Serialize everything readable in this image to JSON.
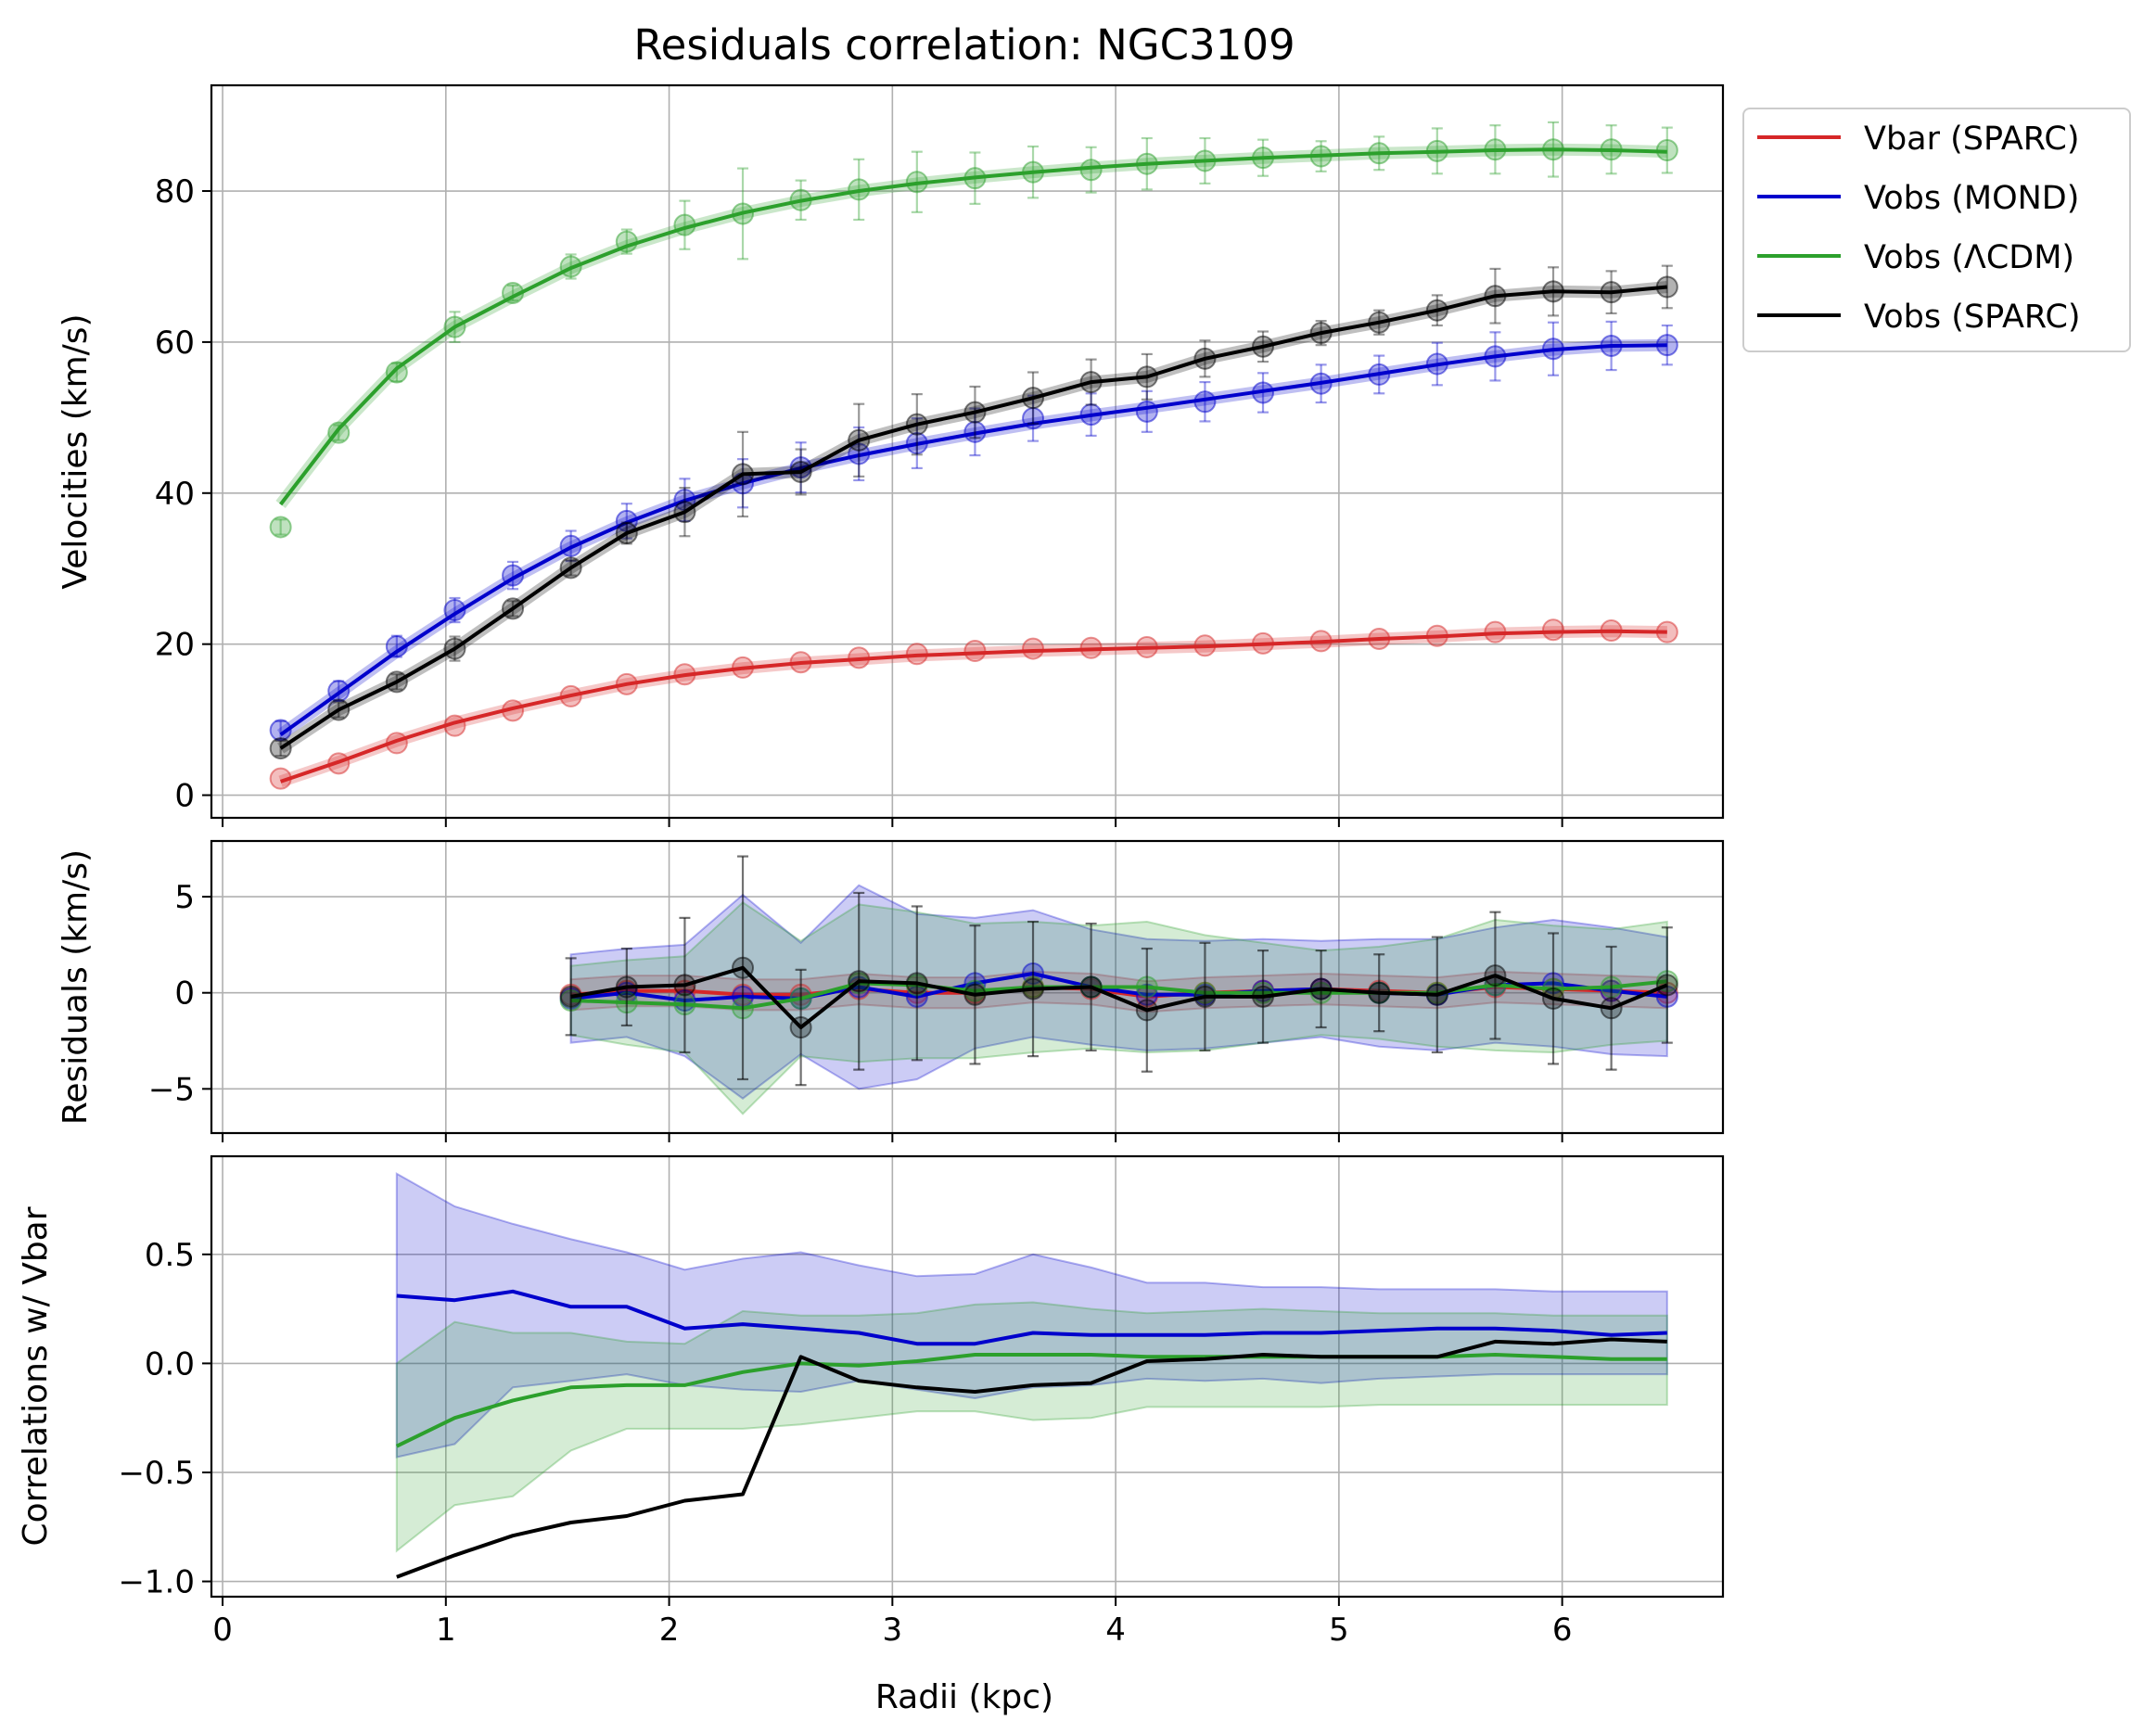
{
  "title": "Residuals correlation: NGC3109",
  "xlabel": "Radii (kpc)",
  "colors": {
    "vbar": "#d62728",
    "mond": "#0000cc",
    "lcdm": "#2ca02c",
    "sparc": "#000000",
    "grid": "#b0b0b0"
  },
  "legend": {
    "placement": "outside-upper-right",
    "entries": [
      "Vbar (SPARC)",
      "Vobs (MOND)",
      "Vobs (ΛCDM)",
      "Vobs (SPARC)"
    ]
  },
  "chart_data": [
    {
      "type": "line",
      "panel": "velocities",
      "ylabel": "Velocities (km/s)",
      "xlim": [
        -0.05,
        6.72
      ],
      "ylim": [
        -3,
        94
      ],
      "xticks": [
        0,
        1,
        2,
        3,
        4,
        5,
        6
      ],
      "yticks": [
        0,
        20,
        40,
        60,
        80
      ],
      "grid": true,
      "x": [
        0.26,
        0.52,
        0.78,
        1.04,
        1.3,
        1.56,
        1.81,
        2.07,
        2.33,
        2.59,
        2.85,
        3.11,
        3.37,
        3.63,
        3.89,
        4.14,
        4.4,
        4.66,
        4.92,
        5.18,
        5.44,
        5.7,
        5.96,
        6.22,
        6.47
      ],
      "series": [
        {
          "name": "Vbar (SPARC)",
          "color_key": "vbar",
          "values": [
            2.2,
            4.2,
            6.9,
            9.2,
            11.2,
            13.1,
            14.7,
            16.0,
            16.9,
            17.6,
            18.2,
            18.7,
            19.1,
            19.4,
            19.5,
            19.6,
            19.8,
            20.1,
            20.4,
            20.7,
            21.1,
            21.6,
            21.9,
            21.8,
            21.6
          ],
          "errors": [
            0,
            0,
            0,
            0,
            0,
            0,
            0,
            0,
            0,
            0,
            0,
            0,
            0,
            0,
            0,
            0,
            0,
            0,
            0,
            0,
            0,
            0,
            0,
            0,
            0
          ],
          "fit": [
            1.8,
            4.4,
            7.2,
            9.6,
            11.5,
            13.2,
            14.7,
            15.9,
            16.8,
            17.5,
            18.0,
            18.5,
            18.8,
            19.1,
            19.3,
            19.5,
            19.7,
            20.0,
            20.3,
            20.7,
            21.0,
            21.4,
            21.6,
            21.7,
            21.6
          ]
        },
        {
          "name": "Vobs (MOND)",
          "color_key": "mond",
          "values": [
            8.6,
            13.8,
            19.7,
            24.5,
            29.1,
            33.0,
            36.3,
            39.1,
            41.3,
            43.4,
            45.2,
            46.6,
            48.1,
            49.9,
            50.4,
            50.8,
            52.1,
            53.3,
            54.5,
            55.7,
            57.1,
            58.1,
            59.1,
            59.5,
            59.6
          ],
          "errors": [
            1.2,
            1.3,
            1.4,
            1.6,
            1.8,
            2.0,
            2.3,
            2.8,
            3.2,
            3.3,
            3.5,
            3.3,
            3.1,
            3.0,
            2.8,
            2.7,
            2.6,
            2.6,
            2.5,
            2.5,
            2.8,
            3.2,
            3.5,
            3.2,
            2.6
          ],
          "fit": [
            8.0,
            13.5,
            19.0,
            24.0,
            28.7,
            32.8,
            36.1,
            39.0,
            41.3,
            43.3,
            45.0,
            46.5,
            47.9,
            49.2,
            50.3,
            51.3,
            52.4,
            53.5,
            54.6,
            55.8,
            57.0,
            58.1,
            59.0,
            59.5,
            59.6
          ]
        },
        {
          "name": "Vobs (ΛCDM)",
          "color_key": "lcdm",
          "values": [
            35.5,
            48.0,
            56.0,
            62.0,
            66.5,
            70.0,
            73.3,
            75.5,
            77.0,
            78.8,
            80.2,
            81.2,
            81.7,
            82.5,
            82.8,
            83.6,
            84.0,
            84.4,
            84.6,
            85.0,
            85.3,
            85.5,
            85.5,
            85.5,
            85.4
          ],
          "errors": [
            1.0,
            1.0,
            1.2,
            2.0,
            1.0,
            1.6,
            1.6,
            3.2,
            6.0,
            2.6,
            4.0,
            4.0,
            3.4,
            3.4,
            3.0,
            3.4,
            3.0,
            2.4,
            2.0,
            2.2,
            3.0,
            3.2,
            3.6,
            3.2,
            3.0
          ],
          "fit": [
            38.5,
            48.5,
            56.5,
            62.0,
            66.0,
            69.8,
            72.7,
            75.1,
            77.1,
            78.7,
            80.0,
            81.0,
            81.8,
            82.5,
            83.1,
            83.6,
            84.0,
            84.4,
            84.7,
            85.0,
            85.2,
            85.4,
            85.5,
            85.4,
            85.2
          ]
        },
        {
          "name": "Vobs (SPARC)",
          "color_key": "sparc",
          "values": [
            6.2,
            11.3,
            15.0,
            19.4,
            24.7,
            30.1,
            34.7,
            37.5,
            42.5,
            42.8,
            47.0,
            49.1,
            50.7,
            52.6,
            54.7,
            55.4,
            57.8,
            59.4,
            61.2,
            62.6,
            64.2,
            66.1,
            66.7,
            66.6,
            67.3
          ],
          "errors": [
            1.0,
            1.0,
            1.0,
            1.6,
            1.0,
            1.0,
            1.4,
            3.2,
            5.6,
            3.0,
            4.8,
            4.0,
            3.4,
            3.4,
            3.0,
            3.0,
            2.4,
            2.0,
            1.6,
            1.6,
            2.0,
            3.6,
            3.2,
            2.8,
            2.8
          ]
        }
      ]
    },
    {
      "type": "line",
      "panel": "residuals",
      "ylabel": "Residuals (km/s)",
      "xlim": [
        -0.05,
        6.72
      ],
      "ylim": [
        -7.3,
        7.9
      ],
      "xticks": [
        0,
        1,
        2,
        3,
        4,
        5,
        6
      ],
      "yticks": [
        -5,
        0,
        5
      ],
      "ytick_labels": [
        "−5",
        "0",
        "5"
      ],
      "grid": true,
      "x": [
        1.56,
        1.81,
        2.07,
        2.33,
        2.59,
        2.85,
        3.11,
        3.37,
        3.63,
        3.89,
        4.14,
        4.4,
        4.66,
        4.92,
        5.18,
        5.44,
        5.7,
        5.96,
        6.22,
        6.47
      ],
      "series": [
        {
          "name": "Vbar (SPARC)",
          "color_key": "vbar",
          "values": [
            -0.1,
            0.1,
            0.1,
            -0.1,
            -0.1,
            0.2,
            0.0,
            0.0,
            0.3,
            0.2,
            -0.2,
            0.0,
            0.1,
            0.2,
            0.1,
            0.0,
            0.3,
            0.2,
            0.1,
            0.0
          ],
          "band": [
            0.8,
            0.8,
            0.8,
            0.8,
            0.8,
            0.8,
            0.8,
            0.8,
            0.8,
            0.8,
            0.8,
            0.8,
            0.8,
            0.8,
            0.8,
            0.8,
            0.8,
            0.8,
            0.8,
            0.8
          ]
        },
        {
          "name": "Vobs (MOND)",
          "color_key": "mond",
          "values": [
            -0.3,
            0.0,
            -0.4,
            -0.2,
            -0.3,
            0.3,
            -0.2,
            0.5,
            1.0,
            0.3,
            -0.1,
            -0.1,
            0.1,
            0.2,
            0.0,
            -0.1,
            0.4,
            0.5,
            0.1,
            -0.2
          ],
          "band": [
            2.3,
            2.3,
            2.9,
            5.3,
            2.9,
            5.3,
            4.3,
            3.4,
            3.3,
            3.0,
            2.9,
            2.8,
            2.7,
            2.5,
            2.8,
            2.9,
            3.0,
            3.3,
            3.3,
            3.1
          ]
        },
        {
          "name": "Vobs (ΛCDM)",
          "color_key": "lcdm",
          "values": [
            -0.4,
            -0.5,
            -0.6,
            -0.8,
            -0.3,
            0.5,
            0.4,
            0.1,
            0.3,
            0.3,
            0.3,
            0.0,
            0.0,
            0.0,
            0.0,
            0.0,
            0.4,
            0.2,
            0.3,
            0.6
          ],
          "band": [
            1.8,
            2.2,
            2.5,
            5.5,
            3.0,
            4.1,
            3.8,
            3.5,
            3.4,
            3.2,
            3.4,
            3.0,
            2.6,
            2.2,
            2.4,
            2.8,
            3.4,
            3.3,
            3.0,
            3.1
          ]
        },
        {
          "name": "Vobs (SPARC)",
          "color_key": "sparc",
          "values": [
            -0.2,
            0.3,
            0.4,
            1.3,
            -1.8,
            0.6,
            0.5,
            -0.1,
            0.2,
            0.3,
            -0.9,
            -0.2,
            -0.2,
            0.2,
            0.0,
            -0.1,
            0.9,
            -0.3,
            -0.8,
            0.4
          ],
          "errors": [
            2.0,
            2.0,
            3.5,
            5.8,
            3.0,
            4.6,
            4.0,
            3.6,
            3.5,
            3.3,
            3.2,
            2.8,
            2.4,
            2.0,
            2.0,
            3.0,
            3.3,
            3.4,
            3.2,
            3.0
          ]
        }
      ]
    },
    {
      "type": "line",
      "panel": "correlations",
      "ylabel": "Correlations w/ Vbar",
      "xlim": [
        -0.05,
        6.72
      ],
      "ylim": [
        -1.07,
        0.95
      ],
      "xticks": [
        0,
        1,
        2,
        3,
        4,
        5,
        6
      ],
      "yticks": [
        -1.0,
        -0.5,
        0.0,
        0.5
      ],
      "ytick_labels": [
        "−1.0",
        "−0.5",
        "0.0",
        "0.5"
      ],
      "grid": true,
      "x": [
        0.78,
        1.04,
        1.3,
        1.56,
        1.81,
        2.07,
        2.33,
        2.59,
        2.85,
        3.11,
        3.37,
        3.63,
        3.89,
        4.14,
        4.4,
        4.66,
        4.92,
        5.18,
        5.44,
        5.7,
        5.96,
        6.22,
        6.47
      ],
      "series": [
        {
          "name": "Vobs (MOND)",
          "color_key": "mond",
          "values": [
            0.31,
            0.29,
            0.33,
            0.26,
            0.26,
            0.16,
            0.18,
            0.16,
            0.14,
            0.09,
            0.09,
            0.14,
            0.13,
            0.13,
            0.13,
            0.14,
            0.14,
            0.15,
            0.16,
            0.16,
            0.15,
            0.13,
            0.14
          ],
          "band_lower": [
            -0.43,
            -0.37,
            -0.11,
            -0.08,
            -0.05,
            -0.1,
            -0.12,
            -0.13,
            -0.08,
            -0.12,
            -0.16,
            -0.11,
            -0.1,
            -0.07,
            -0.08,
            -0.07,
            -0.09,
            -0.07,
            -0.06,
            -0.05,
            -0.05,
            -0.05,
            -0.05
          ],
          "band_upper": [
            0.87,
            0.72,
            0.64,
            0.57,
            0.51,
            0.43,
            0.48,
            0.51,
            0.45,
            0.4,
            0.41,
            0.5,
            0.44,
            0.37,
            0.37,
            0.35,
            0.35,
            0.34,
            0.34,
            0.34,
            0.33,
            0.33,
            0.33
          ]
        },
        {
          "name": "Vobs (ΛCDM)",
          "color_key": "lcdm",
          "values": [
            -0.38,
            -0.25,
            -0.17,
            -0.11,
            -0.1,
            -0.1,
            -0.04,
            0.0,
            -0.01,
            0.01,
            0.04,
            0.04,
            0.04,
            0.03,
            0.03,
            0.03,
            0.03,
            0.03,
            0.03,
            0.04,
            0.03,
            0.02,
            0.02
          ],
          "band_lower": [
            -0.86,
            -0.65,
            -0.61,
            -0.4,
            -0.3,
            -0.3,
            -0.3,
            -0.28,
            -0.25,
            -0.22,
            -0.22,
            -0.26,
            -0.25,
            -0.2,
            -0.2,
            -0.2,
            -0.2,
            -0.19,
            -0.19,
            -0.19,
            -0.19,
            -0.19,
            -0.19
          ],
          "band_upper": [
            0.0,
            0.19,
            0.14,
            0.14,
            0.1,
            0.09,
            0.24,
            0.22,
            0.22,
            0.23,
            0.27,
            0.28,
            0.25,
            0.23,
            0.24,
            0.25,
            0.24,
            0.23,
            0.23,
            0.23,
            0.22,
            0.22,
            0.22
          ]
        },
        {
          "name": "Vobs (SPARC)",
          "color_key": "sparc",
          "values": [
            -0.98,
            -0.88,
            -0.79,
            -0.73,
            -0.7,
            -0.63,
            -0.6,
            0.03,
            -0.08,
            -0.11,
            -0.13,
            -0.1,
            -0.09,
            0.01,
            0.02,
            0.04,
            0.03,
            0.03,
            0.03,
            0.1,
            0.09,
            0.11,
            0.1
          ]
        }
      ]
    }
  ]
}
